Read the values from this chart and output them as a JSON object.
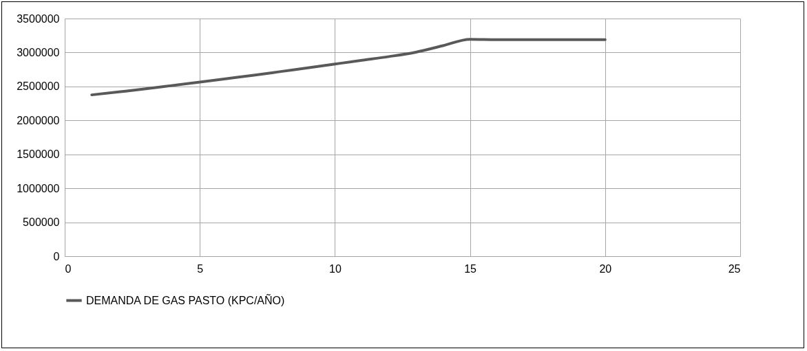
{
  "chart_data": {
    "type": "line",
    "x": [
      1,
      2,
      3,
      4,
      5,
      6,
      7,
      8,
      9,
      10,
      11,
      12,
      13,
      14,
      15,
      16,
      17,
      18,
      19,
      20
    ],
    "series": [
      {
        "name": "DEMANDA DE GAS PASTO (KPC/AÑO)",
        "color": "#595959",
        "values": [
          2376000,
          2420000,
          2465000,
          2515000,
          2565000,
          2615000,
          2665000,
          2720000,
          2775000,
          2830000,
          2885000,
          2940000,
          3005000,
          3100000,
          3195000,
          3190000,
          3190000,
          3190000,
          3190000,
          3190000
        ]
      }
    ],
    "xlim": [
      0,
      25
    ],
    "xticks": [
      0,
      5,
      10,
      15,
      20,
      25
    ],
    "ylim": [
      0,
      3500000
    ],
    "yticks": [
      0,
      500000,
      1000000,
      1500000,
      2000000,
      2500000,
      3000000,
      3500000
    ],
    "grid": true,
    "legend": "bottom",
    "marker": "none",
    "line_style": "solid"
  }
}
